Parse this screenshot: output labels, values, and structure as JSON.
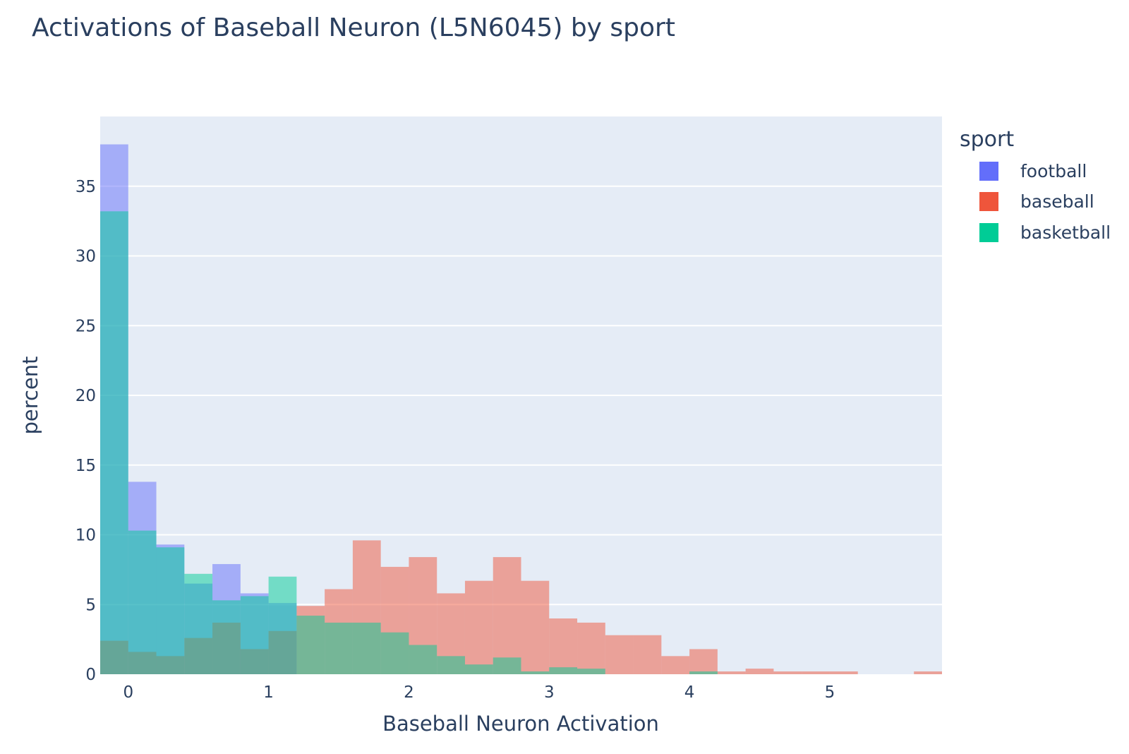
{
  "chart_data": {
    "type": "bar",
    "title": "Activations of Baseball Neuron (L5N6045) by sport",
    "xlabel": "Baseball Neuron Activation",
    "ylabel": "percent",
    "xlim": [
      -0.2,
      5.8
    ],
    "ylim": [
      0,
      40
    ],
    "bin_width": 0.2,
    "x_ticks": [
      0,
      1,
      2,
      3,
      4,
      5
    ],
    "y_ticks": [
      0,
      5,
      10,
      15,
      20,
      25,
      30,
      35
    ],
    "grid": true,
    "legend": {
      "title": "sport",
      "position": "right"
    },
    "bin_starts": [
      -0.2,
      0.0,
      0.2,
      0.4,
      0.6,
      0.8,
      1.0,
      1.2,
      1.4,
      1.6,
      1.8,
      2.0,
      2.2,
      2.4,
      2.6,
      2.8,
      3.0,
      3.2,
      3.4,
      3.6,
      3.8,
      4.0,
      4.2,
      4.4,
      4.6,
      4.8,
      5.0,
      5.2,
      5.4,
      5.6
    ],
    "series": [
      {
        "name": "football",
        "color": "#636efa",
        "values": [
          38.0,
          13.8,
          9.3,
          6.5,
          7.9,
          5.8,
          5.1,
          0,
          0,
          0,
          0,
          0,
          0,
          0,
          0,
          0,
          0,
          0,
          0,
          0,
          0,
          0,
          0,
          0,
          0,
          0,
          0,
          0,
          0,
          0
        ]
      },
      {
        "name": "baseball",
        "color": "#ef553b",
        "values": [
          2.4,
          1.6,
          1.3,
          2.6,
          3.7,
          1.8,
          3.1,
          4.9,
          6.1,
          9.6,
          7.7,
          8.4,
          5.8,
          6.7,
          8.4,
          6.7,
          4.0,
          3.7,
          2.8,
          2.8,
          1.3,
          1.8,
          0.2,
          0.4,
          0.2,
          0.2,
          0.2,
          0,
          0,
          0.2
        ]
      },
      {
        "name": "basketball",
        "color": "#00cc96",
        "values": [
          33.2,
          10.3,
          9.1,
          7.2,
          5.3,
          5.6,
          7.0,
          4.2,
          3.7,
          3.7,
          3.0,
          2.1,
          1.3,
          0.7,
          1.2,
          0.2,
          0.5,
          0.4,
          0,
          0,
          0,
          0.2,
          0,
          0,
          0,
          0,
          0,
          0,
          0,
          0
        ]
      }
    ]
  }
}
